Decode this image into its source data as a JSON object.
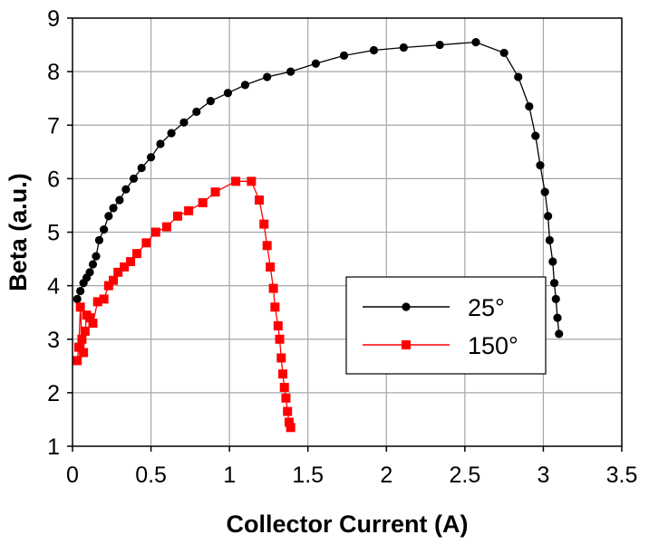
{
  "chart_data": {
    "type": "scatter",
    "xlabel": "Collector Current (A)",
    "ylabel": "Beta (a.u.)",
    "xlim": [
      0,
      3.5
    ],
    "ylim": [
      1,
      9
    ],
    "x_ticks": [
      "0",
      "0.5",
      "1",
      "1.5",
      "2",
      "2.5",
      "3",
      "3.5"
    ],
    "y_ticks": [
      "1",
      "2",
      "3",
      "4",
      "5",
      "6",
      "7",
      "8",
      "9"
    ],
    "grid": true,
    "legend_position": "right-center",
    "series": [
      {
        "name": "25°",
        "color": "#000000",
        "marker": "circle",
        "points": [
          [
            0.03,
            3.75
          ],
          [
            0.05,
            3.9
          ],
          [
            0.07,
            4.05
          ],
          [
            0.09,
            4.15
          ],
          [
            0.11,
            4.25
          ],
          [
            0.13,
            4.4
          ],
          [
            0.15,
            4.55
          ],
          [
            0.17,
            4.85
          ],
          [
            0.2,
            5.05
          ],
          [
            0.23,
            5.3
          ],
          [
            0.26,
            5.45
          ],
          [
            0.3,
            5.6
          ],
          [
            0.34,
            5.8
          ],
          [
            0.39,
            6.0
          ],
          [
            0.44,
            6.2
          ],
          [
            0.5,
            6.4
          ],
          [
            0.56,
            6.65
          ],
          [
            0.63,
            6.85
          ],
          [
            0.71,
            7.05
          ],
          [
            0.79,
            7.25
          ],
          [
            0.88,
            7.45
          ],
          [
            0.99,
            7.6
          ],
          [
            1.1,
            7.75
          ],
          [
            1.24,
            7.9
          ],
          [
            1.39,
            8.0
          ],
          [
            1.55,
            8.15
          ],
          [
            1.73,
            8.3
          ],
          [
            1.92,
            8.4
          ],
          [
            2.11,
            8.45
          ],
          [
            2.34,
            8.5
          ],
          [
            2.57,
            8.55
          ],
          [
            2.75,
            8.35
          ],
          [
            2.84,
            7.9
          ],
          [
            2.91,
            7.35
          ],
          [
            2.95,
            6.8
          ],
          [
            2.98,
            6.25
          ],
          [
            3.01,
            5.75
          ],
          [
            3.03,
            5.3
          ],
          [
            3.04,
            4.85
          ],
          [
            3.06,
            4.45
          ],
          [
            3.07,
            4.05
          ],
          [
            3.08,
            3.75
          ],
          [
            3.09,
            3.4
          ],
          [
            3.1,
            3.1
          ]
        ]
      },
      {
        "name": "150°",
        "color": "#ff0000",
        "marker": "square",
        "points": [
          [
            0.03,
            2.6
          ],
          [
            0.04,
            2.85
          ],
          [
            0.05,
            3.6
          ],
          [
            0.06,
            3.0
          ],
          [
            0.07,
            2.75
          ],
          [
            0.08,
            3.15
          ],
          [
            0.09,
            3.45
          ],
          [
            0.11,
            3.4
          ],
          [
            0.13,
            3.3
          ],
          [
            0.16,
            3.7
          ],
          [
            0.2,
            3.75
          ],
          [
            0.23,
            4.0
          ],
          [
            0.26,
            4.1
          ],
          [
            0.29,
            4.25
          ],
          [
            0.33,
            4.35
          ],
          [
            0.37,
            4.45
          ],
          [
            0.41,
            4.6
          ],
          [
            0.47,
            4.8
          ],
          [
            0.53,
            5.0
          ],
          [
            0.6,
            5.1
          ],
          [
            0.67,
            5.3
          ],
          [
            0.74,
            5.4
          ],
          [
            0.83,
            5.55
          ],
          [
            0.91,
            5.75
          ],
          [
            1.04,
            5.95
          ],
          [
            1.14,
            5.95
          ],
          [
            1.19,
            5.6
          ],
          [
            1.22,
            5.15
          ],
          [
            1.24,
            4.75
          ],
          [
            1.26,
            4.35
          ],
          [
            1.28,
            3.95
          ],
          [
            1.29,
            3.6
          ],
          [
            1.31,
            3.25
          ],
          [
            1.32,
            3.0
          ],
          [
            1.33,
            2.65
          ],
          [
            1.34,
            2.35
          ],
          [
            1.35,
            2.1
          ],
          [
            1.36,
            1.9
          ],
          [
            1.37,
            1.65
          ],
          [
            1.38,
            1.45
          ],
          [
            1.39,
            1.35
          ]
        ]
      }
    ]
  }
}
